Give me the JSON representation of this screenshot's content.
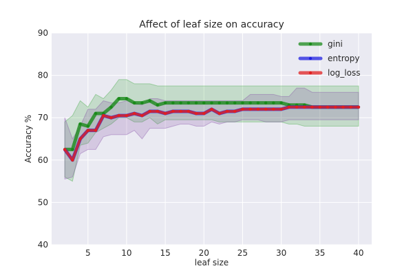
{
  "chart_data": {
    "type": "line",
    "title": "Affect of leaf size on accuracy",
    "xlabel": "leaf size",
    "ylabel": "Accuracy %",
    "xlim": [
      0.3,
      41.7
    ],
    "ylim": [
      40,
      90
    ],
    "xticks": [
      5,
      10,
      15,
      20,
      25,
      30,
      35,
      40
    ],
    "yticks": [
      40,
      50,
      60,
      70,
      80,
      90
    ],
    "grid": true,
    "legend_position": "top-right",
    "x": [
      2,
      3,
      4,
      5,
      6,
      7,
      8,
      9,
      10,
      11,
      12,
      13,
      14,
      15,
      16,
      17,
      18,
      19,
      20,
      21,
      22,
      23,
      24,
      25,
      26,
      27,
      28,
      29,
      30,
      31,
      32,
      33,
      34,
      35,
      36,
      37,
      38,
      39,
      40
    ],
    "series": [
      {
        "name": "gini",
        "color": "#1a8a1a",
        "band_color": "#2ca02c",
        "values": [
          62.5,
          62.5,
          68.5,
          68.0,
          71.0,
          71.0,
          72.5,
          74.5,
          74.5,
          73.5,
          73.5,
          74.0,
          73.0,
          73.5,
          73.5,
          73.5,
          73.5,
          73.5,
          73.5,
          73.5,
          73.5,
          73.5,
          73.5,
          73.5,
          73.5,
          73.5,
          73.5,
          73.5,
          73.5,
          73.0,
          73.0,
          73.0,
          72.5,
          72.5,
          72.5,
          72.5,
          72.5,
          72.5,
          72.5
        ],
        "upper": [
          69.0,
          70.5,
          74.0,
          72.5,
          75.5,
          74.5,
          76.5,
          79.0,
          79.0,
          78.0,
          78.0,
          78.0,
          77.5,
          77.5,
          77.5,
          77.5,
          77.5,
          77.5,
          77.5,
          77.5,
          77.5,
          77.5,
          77.5,
          77.5,
          77.5,
          77.5,
          77.5,
          77.5,
          77.5,
          77.5,
          77.5,
          77.5,
          77.5,
          77.5,
          77.5,
          77.5,
          77.5,
          77.5,
          77.5
        ],
        "lower": [
          56.0,
          55.0,
          63.5,
          64.0,
          66.5,
          67.5,
          68.5,
          70.0,
          70.0,
          69.0,
          69.0,
          70.0,
          68.5,
          69.5,
          69.5,
          69.5,
          69.5,
          69.5,
          69.5,
          69.5,
          69.0,
          69.0,
          69.0,
          69.0,
          69.0,
          69.0,
          69.0,
          69.0,
          69.0,
          68.5,
          68.5,
          68.0,
          68.0,
          68.0,
          68.0,
          68.0,
          68.0,
          68.0,
          68.0
        ]
      },
      {
        "name": "entropy",
        "color": "#2020e0",
        "band_color": "#7b3fa0",
        "values": [
          62.5,
          60.0,
          65.0,
          67.0,
          67.0,
          70.5,
          70.0,
          70.5,
          70.5,
          71.0,
          70.5,
          71.5,
          71.5,
          71.0,
          71.5,
          71.5,
          71.5,
          71.0,
          71.0,
          72.0,
          71.0,
          71.5,
          71.5,
          72.0,
          72.0,
          72.0,
          72.0,
          72.0,
          72.0,
          72.5,
          72.5,
          72.5,
          72.5,
          72.5,
          72.5,
          72.5,
          72.5,
          72.5,
          72.5
        ],
        "upper": [
          70.0,
          65.0,
          68.0,
          72.0,
          72.0,
          74.0,
          73.5,
          73.5,
          74.0,
          73.5,
          73.0,
          74.5,
          74.5,
          74.0,
          74.0,
          74.0,
          74.0,
          74.0,
          74.0,
          74.0,
          74.0,
          74.0,
          74.0,
          74.0,
          75.5,
          75.5,
          75.5,
          75.5,
          75.0,
          75.0,
          77.0,
          77.0,
          76.0,
          76.0,
          76.0,
          76.0,
          76.0,
          76.0,
          76.0
        ],
        "lower": [
          55.5,
          56.0,
          61.5,
          62.5,
          62.5,
          65.5,
          66.0,
          66.0,
          66.0,
          67.0,
          65.0,
          67.5,
          67.5,
          67.5,
          68.0,
          68.5,
          68.5,
          68.0,
          68.0,
          69.0,
          68.5,
          69.0,
          69.0,
          69.5,
          69.5,
          69.5,
          69.0,
          69.0,
          69.0,
          69.5,
          69.5,
          69.5,
          69.5,
          69.5,
          69.5,
          69.5,
          69.5,
          69.5,
          69.5
        ]
      },
      {
        "name": "log_loss",
        "color": "#e02020",
        "values": [
          62.5,
          60.0,
          65.0,
          67.0,
          67.0,
          70.5,
          70.0,
          70.5,
          70.5,
          71.0,
          70.5,
          71.5,
          71.5,
          71.0,
          71.5,
          71.5,
          71.5,
          71.0,
          71.0,
          72.0,
          71.0,
          71.5,
          71.5,
          72.0,
          72.0,
          72.0,
          72.0,
          72.0,
          72.0,
          72.5,
          72.5,
          72.5,
          72.5,
          72.5,
          72.5,
          72.5,
          72.5,
          72.5,
          72.5
        ]
      }
    ]
  }
}
